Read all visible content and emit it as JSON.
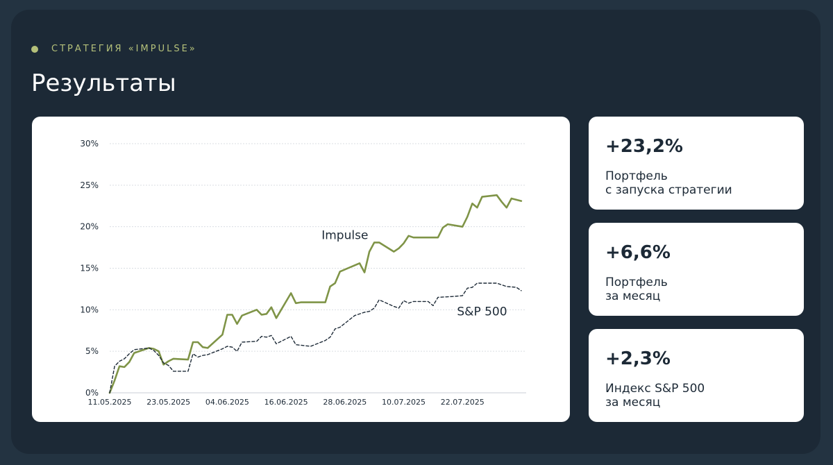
{
  "header": {
    "eyebrow": "СТРАТЕГИЯ «IMPULSE»",
    "title": "Результаты"
  },
  "colors": {
    "background": "#1c2936",
    "accent": "#b4c07a",
    "impulse_line": "#7f9447",
    "sp500_line": "#1c2936"
  },
  "stats": [
    {
      "value": "+23,2%",
      "label_line1": "Портфель",
      "label_line2": "с запуска стратегии"
    },
    {
      "value": "+6,6%",
      "label_line1": "Портфель",
      "label_line2": "за месяц"
    },
    {
      "value": "+2,3%",
      "label_line1": "Индекс S&P 500",
      "label_line2": "за месяц"
    }
  ],
  "chart_data": {
    "type": "line",
    "y_ticks": [
      "0%",
      "5%",
      "10%",
      "15%",
      "20%",
      "25%",
      "30%"
    ],
    "ylim": [
      0,
      30
    ],
    "xlim": [
      "2025-05-11",
      "2025-08-04"
    ],
    "x_ticks": [
      "11.05.2025",
      "23.05.2025",
      "04.06.2025",
      "16.06.2025",
      "28.06.2025",
      "10.07.2025",
      "22.07.2025"
    ],
    "x_tick_dates": [
      "2025-05-11",
      "2025-05-23",
      "2025-06-04",
      "2025-06-16",
      "2025-06-28",
      "2025-07-10",
      "2025-07-22"
    ],
    "grid": true,
    "series": [
      {
        "name": "Impulse",
        "style": "solid",
        "color": "#7f9447",
        "points": [
          [
            "2025-05-11",
            0.0
          ],
          [
            "2025-05-12",
            1.5
          ],
          [
            "2025-05-13",
            3.2
          ],
          [
            "2025-05-14",
            3.1
          ],
          [
            "2025-05-15",
            3.7
          ],
          [
            "2025-05-16",
            4.8
          ],
          [
            "2025-05-19",
            5.4
          ],
          [
            "2025-05-20",
            5.3
          ],
          [
            "2025-05-21",
            5.0
          ],
          [
            "2025-05-22",
            3.4
          ],
          [
            "2025-05-23",
            3.8
          ],
          [
            "2025-05-24",
            4.1
          ],
          [
            "2025-05-27",
            4.0
          ],
          [
            "2025-05-28",
            6.1
          ],
          [
            "2025-05-29",
            6.1
          ],
          [
            "2025-05-30",
            5.5
          ],
          [
            "2025-05-31",
            5.4
          ],
          [
            "2025-06-03",
            7.0
          ],
          [
            "2025-06-04",
            9.4
          ],
          [
            "2025-06-05",
            9.4
          ],
          [
            "2025-06-06",
            8.3
          ],
          [
            "2025-06-07",
            9.3
          ],
          [
            "2025-06-10",
            10.0
          ],
          [
            "2025-06-11",
            9.4
          ],
          [
            "2025-06-12",
            9.5
          ],
          [
            "2025-06-13",
            10.3
          ],
          [
            "2025-06-14",
            9.0
          ],
          [
            "2025-06-17",
            12.0
          ],
          [
            "2025-06-18",
            10.8
          ],
          [
            "2025-06-19",
            10.9
          ],
          [
            "2025-06-24",
            10.9
          ],
          [
            "2025-06-25",
            12.8
          ],
          [
            "2025-06-26",
            13.2
          ],
          [
            "2025-06-27",
            14.6
          ],
          [
            "2025-07-01",
            15.6
          ],
          [
            "2025-07-02",
            14.5
          ],
          [
            "2025-07-03",
            17.0
          ],
          [
            "2025-07-04",
            18.1
          ],
          [
            "2025-07-05",
            18.1
          ],
          [
            "2025-07-08",
            17.0
          ],
          [
            "2025-07-09",
            17.4
          ],
          [
            "2025-07-10",
            18.0
          ],
          [
            "2025-07-11",
            18.9
          ],
          [
            "2025-07-12",
            18.7
          ],
          [
            "2025-07-17",
            18.7
          ],
          [
            "2025-07-18",
            19.9
          ],
          [
            "2025-07-19",
            20.3
          ],
          [
            "2025-07-22",
            20.0
          ],
          [
            "2025-07-23",
            21.2
          ],
          [
            "2025-07-24",
            22.8
          ],
          [
            "2025-07-25",
            22.3
          ],
          [
            "2025-07-26",
            23.6
          ],
          [
            "2025-07-29",
            23.8
          ],
          [
            "2025-07-30",
            23.0
          ],
          [
            "2025-07-31",
            22.3
          ],
          [
            "2025-08-01",
            23.4
          ],
          [
            "2025-08-03",
            23.1
          ]
        ]
      },
      {
        "name": "S&P 500",
        "style": "dashed",
        "color": "#1c2936",
        "points": [
          [
            "2025-05-11",
            0.0
          ],
          [
            "2025-05-12",
            3.2
          ],
          [
            "2025-05-13",
            3.8
          ],
          [
            "2025-05-14",
            4.1
          ],
          [
            "2025-05-15",
            4.7
          ],
          [
            "2025-05-16",
            5.2
          ],
          [
            "2025-05-19",
            5.4
          ],
          [
            "2025-05-20",
            5.1
          ],
          [
            "2025-05-21",
            4.5
          ],
          [
            "2025-05-22",
            3.6
          ],
          [
            "2025-05-23",
            3.3
          ],
          [
            "2025-05-24",
            2.6
          ],
          [
            "2025-05-27",
            2.6
          ],
          [
            "2025-05-28",
            4.7
          ],
          [
            "2025-05-29",
            4.3
          ],
          [
            "2025-05-30",
            4.5
          ],
          [
            "2025-05-31",
            4.6
          ],
          [
            "2025-06-03",
            5.3
          ],
          [
            "2025-06-04",
            5.6
          ],
          [
            "2025-06-05",
            5.5
          ],
          [
            "2025-06-06",
            5.0
          ],
          [
            "2025-06-07",
            6.1
          ],
          [
            "2025-06-10",
            6.2
          ],
          [
            "2025-06-11",
            6.8
          ],
          [
            "2025-06-12",
            6.7
          ],
          [
            "2025-06-13",
            6.9
          ],
          [
            "2025-06-14",
            5.9
          ],
          [
            "2025-06-17",
            6.8
          ],
          [
            "2025-06-18",
            5.8
          ],
          [
            "2025-06-21",
            5.6
          ],
          [
            "2025-06-24",
            6.3
          ],
          [
            "2025-06-25",
            6.7
          ],
          [
            "2025-06-26",
            7.7
          ],
          [
            "2025-06-27",
            7.9
          ],
          [
            "2025-06-30",
            9.3
          ],
          [
            "2025-07-02",
            9.7
          ],
          [
            "2025-07-03",
            9.8
          ],
          [
            "2025-07-04",
            10.2
          ],
          [
            "2025-07-05",
            11.2
          ],
          [
            "2025-07-08",
            10.4
          ],
          [
            "2025-07-09",
            10.2
          ],
          [
            "2025-07-10",
            11.1
          ],
          [
            "2025-07-11",
            10.8
          ],
          [
            "2025-07-12",
            11.0
          ],
          [
            "2025-07-15",
            11.0
          ],
          [
            "2025-07-16",
            10.5
          ],
          [
            "2025-07-17",
            11.5
          ],
          [
            "2025-07-20",
            11.6
          ],
          [
            "2025-07-22",
            11.7
          ],
          [
            "2025-07-23",
            12.6
          ],
          [
            "2025-07-24",
            12.7
          ],
          [
            "2025-07-25",
            13.2
          ],
          [
            "2025-07-29",
            13.2
          ],
          [
            "2025-07-31",
            12.8
          ],
          [
            "2025-08-02",
            12.7
          ],
          [
            "2025-08-03",
            12.3
          ]
        ]
      }
    ],
    "annotations": [
      {
        "text": "Impulse",
        "near_series": "Impulse"
      },
      {
        "text": "S&P 500",
        "near_series": "S&P 500"
      }
    ]
  }
}
